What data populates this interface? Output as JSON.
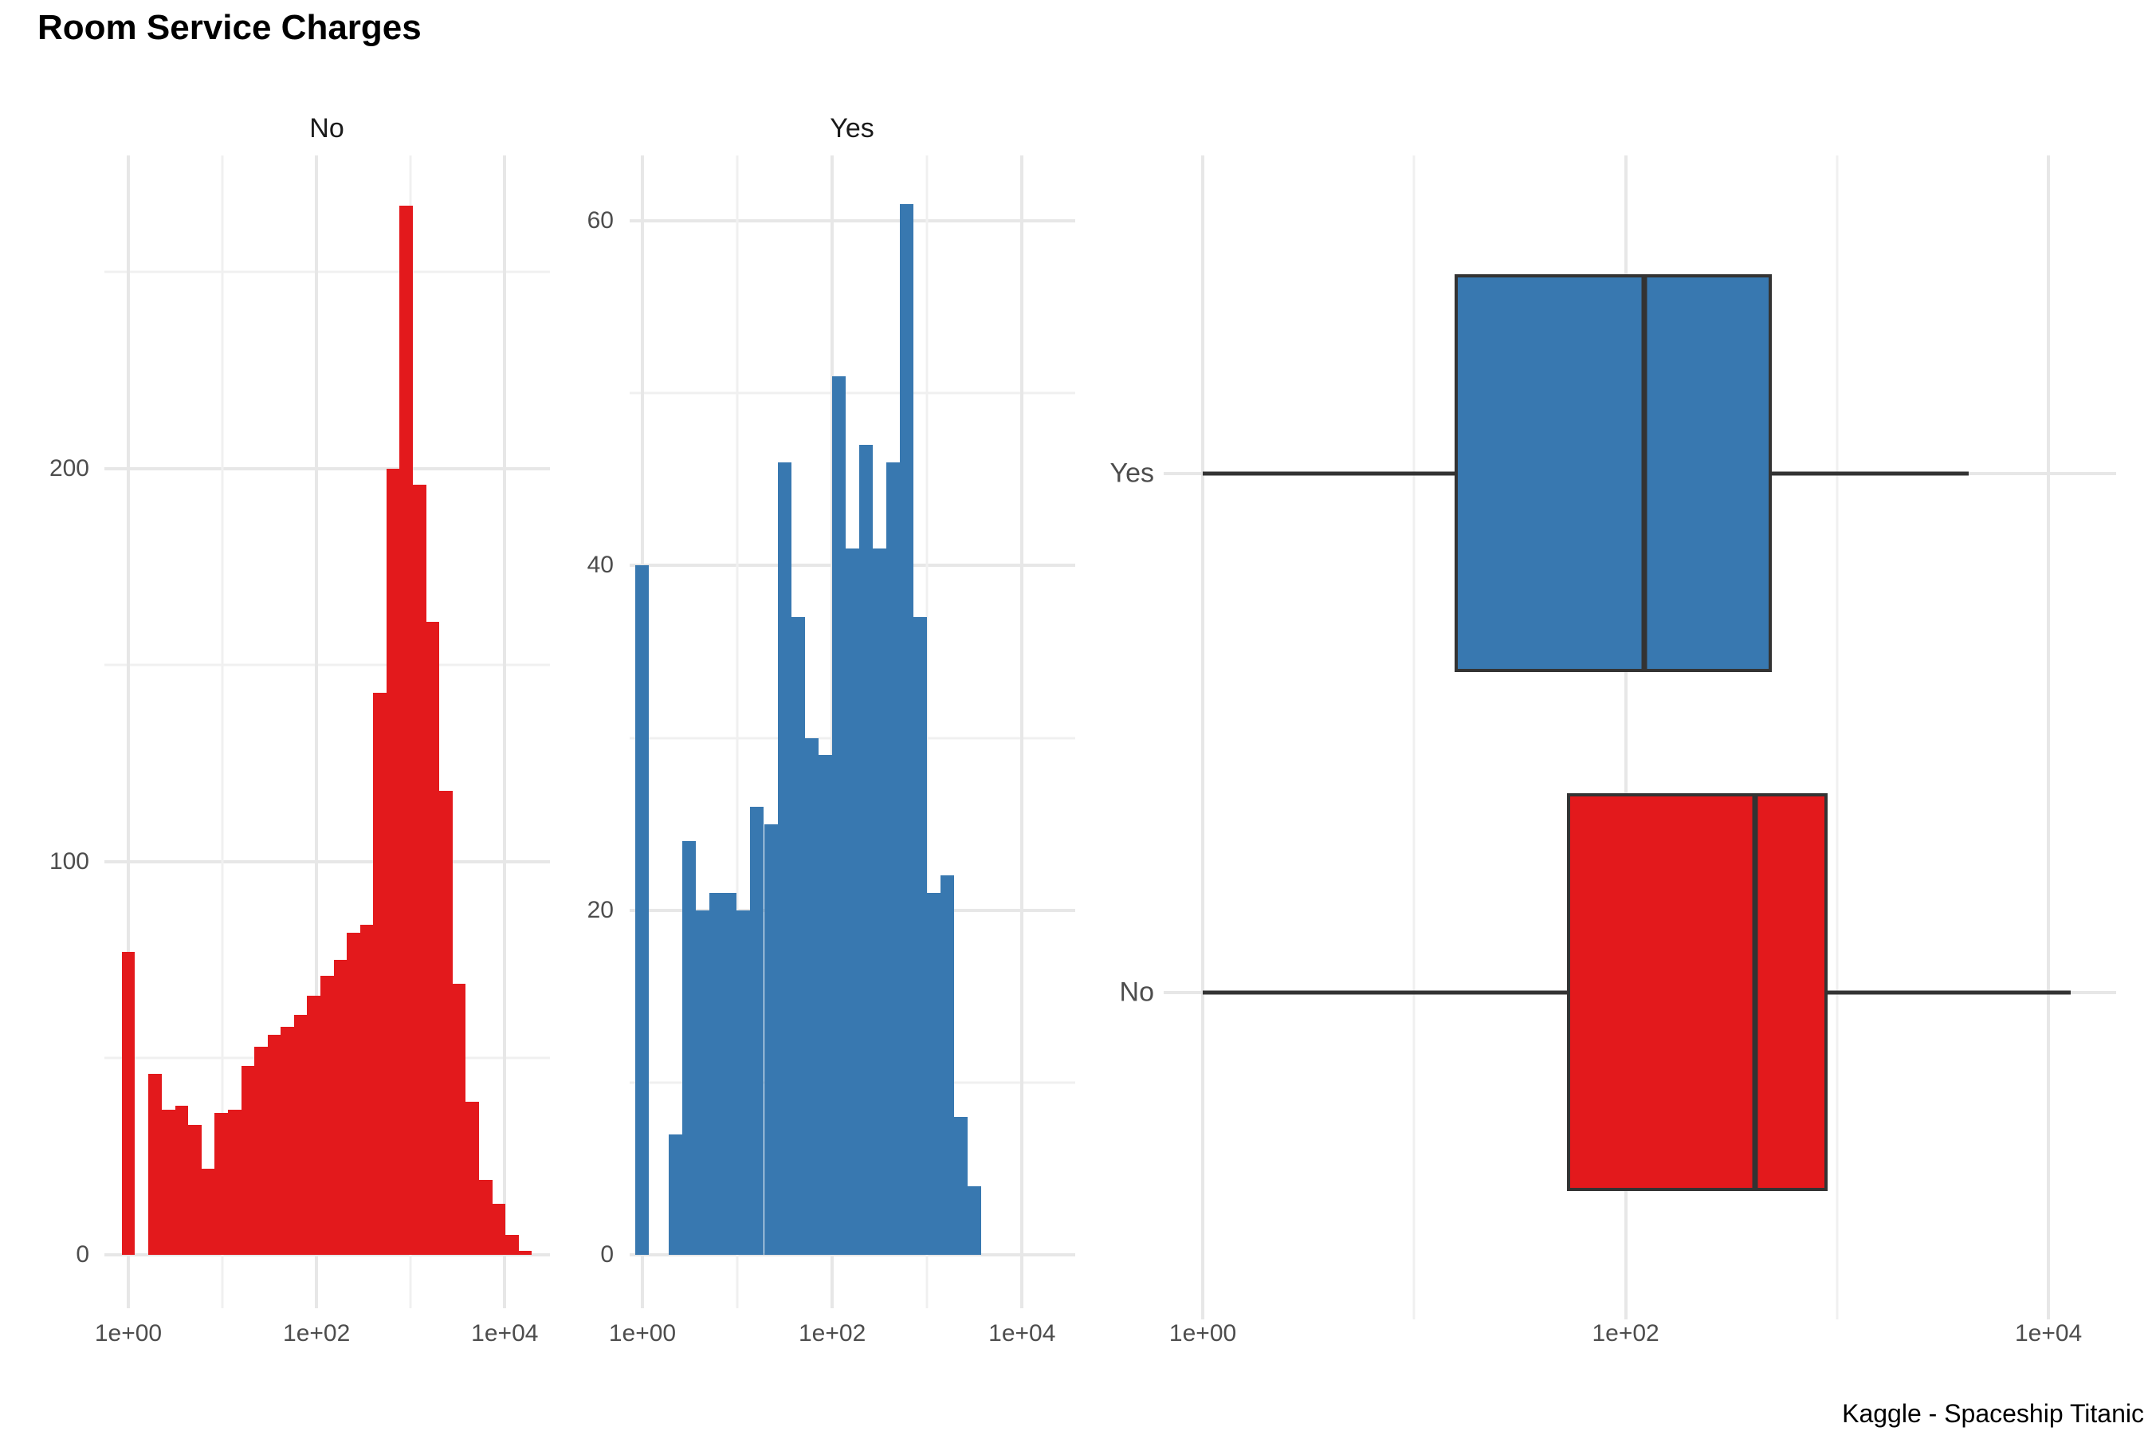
{
  "title": "Room Service Charges",
  "caption": "Kaggle - Spaceship Titanic",
  "colors": {
    "no_fill": "#e3191c",
    "yes_fill": "#3878b0",
    "grid_major": "#e7e7e7",
    "grid_minor": "#f0f0f0",
    "axis_text": "#4d4d4d",
    "box_stroke": "#333333"
  },
  "chart_data": [
    {
      "type": "bar",
      "subtype": "histogram-log-x",
      "facet": "No",
      "color_key": "no_fill",
      "x_scale": "log10",
      "x_tick_labels": [
        "1e+00",
        "1e+02",
        "1e+04"
      ],
      "x_tick_logs": [
        0,
        2,
        4
      ],
      "x_minor_logs": [
        1,
        3
      ],
      "x_domain_log": [
        -0.254,
        4.48
      ],
      "y_ticks": [
        0,
        100,
        200
      ],
      "y_minor_ticks": [
        50,
        150,
        250
      ],
      "y_domain": [
        -13.6,
        279.7
      ],
      "first_bar": {
        "center_log": 0,
        "height": 77
      },
      "gap_after_first_bar": true,
      "bins_start_log": 0.216,
      "bin_width_log": 0.1404,
      "bin_heights": [
        46,
        37,
        38,
        33,
        22,
        36,
        37,
        48,
        53,
        56,
        58,
        61,
        66,
        71,
        75,
        82,
        84,
        143,
        200,
        267,
        196,
        161,
        118,
        69,
        39,
        19,
        13,
        5,
        1
      ]
    },
    {
      "type": "bar",
      "subtype": "histogram-log-x",
      "facet": "Yes",
      "color_key": "yes_fill",
      "x_scale": "log10",
      "x_tick_labels": [
        "1e+00",
        "1e+02",
        "1e+04"
      ],
      "x_tick_logs": [
        0,
        2,
        4
      ],
      "x_minor_logs": [
        1,
        3
      ],
      "x_domain_log": [
        -0.134,
        4.56
      ],
      "y_ticks": [
        0,
        20,
        40,
        60
      ],
      "y_minor_ticks": [
        10,
        30,
        50
      ],
      "y_domain": [
        -3.1,
        63.8
      ],
      "first_bar": {
        "center_log": 0,
        "height": 40
      },
      "gap_after_first_bar": true,
      "bins_start_log": 0.28,
      "bin_width_log": 0.143,
      "bin_heights": [
        7,
        24,
        20,
        21,
        21,
        20,
        26,
        25,
        46,
        37,
        30,
        29,
        51,
        41,
        47,
        41,
        46,
        61,
        37,
        21,
        22,
        8,
        4
      ]
    },
    {
      "type": "boxplot",
      "orientation": "horizontal",
      "x_scale": "log10",
      "x_tick_labels": [
        "1e+00",
        "1e+02",
        "1e+04"
      ],
      "x_tick_logs": [
        0,
        2,
        4
      ],
      "x_minor_logs": [
        1,
        3
      ],
      "x_domain_log": [
        -0.185,
        4.32
      ],
      "categories": [
        "Yes",
        "No"
      ],
      "boxes": [
        {
          "label": "Yes",
          "color_key": "yes_fill",
          "whisker_min": 1,
          "q1": 15.5,
          "median": 123,
          "q3": 490,
          "whisker_max": 4200
        },
        {
          "label": "No",
          "color_key": "no_fill",
          "whisker_min": 1,
          "q1": 53,
          "median": 410,
          "q3": 900,
          "whisker_max": 12700
        }
      ]
    }
  ]
}
